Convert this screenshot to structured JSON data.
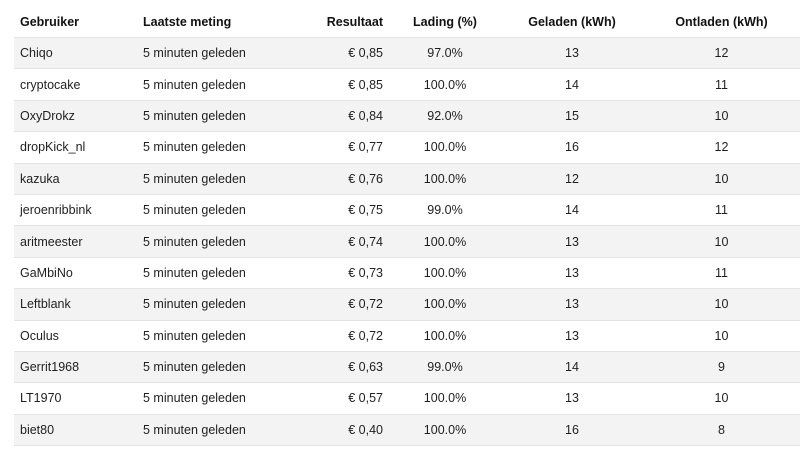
{
  "table": {
    "headers": {
      "user": "Gebruiker",
      "last_measurement": "Laatste meting",
      "result": "Resultaat",
      "charge": "Lading (%)",
      "charged": "Geladen (kWh)",
      "discharged": "Ontladen (kWh)"
    },
    "rows": [
      {
        "user": "Chiqo",
        "last_measurement": "5 minuten geleden",
        "result": "€ 0,85",
        "charge": "97.0%",
        "charged": "13",
        "discharged": "12"
      },
      {
        "user": "cryptocake",
        "last_measurement": "5 minuten geleden",
        "result": "€ 0,85",
        "charge": "100.0%",
        "charged": "14",
        "discharged": "11"
      },
      {
        "user": "OxyDrokz",
        "last_measurement": "5 minuten geleden",
        "result": "€ 0,84",
        "charge": "92.0%",
        "charged": "15",
        "discharged": "10"
      },
      {
        "user": "dropKick_nl",
        "last_measurement": "5 minuten geleden",
        "result": "€ 0,77",
        "charge": "100.0%",
        "charged": "16",
        "discharged": "12"
      },
      {
        "user": "kazuka",
        "last_measurement": "5 minuten geleden",
        "result": "€ 0,76",
        "charge": "100.0%",
        "charged": "12",
        "discharged": "10"
      },
      {
        "user": "jeroenribbink",
        "last_measurement": "5 minuten geleden",
        "result": "€ 0,75",
        "charge": "99.0%",
        "charged": "14",
        "discharged": "11"
      },
      {
        "user": "aritmeester",
        "last_measurement": "5 minuten geleden",
        "result": "€ 0,74",
        "charge": "100.0%",
        "charged": "13",
        "discharged": "10"
      },
      {
        "user": "GaMbiNo",
        "last_measurement": "5 minuten geleden",
        "result": "€ 0,73",
        "charge": "100.0%",
        "charged": "13",
        "discharged": "11"
      },
      {
        "user": "Leftblank",
        "last_measurement": "5 minuten geleden",
        "result": "€ 0,72",
        "charge": "100.0%",
        "charged": "13",
        "discharged": "10"
      },
      {
        "user": "Oculus",
        "last_measurement": "5 minuten geleden",
        "result": "€ 0,72",
        "charge": "100.0%",
        "charged": "13",
        "discharged": "10"
      },
      {
        "user": "Gerrit1968",
        "last_measurement": "5 minuten geleden",
        "result": "€ 0,63",
        "charge": "99.0%",
        "charged": "14",
        "discharged": "9"
      },
      {
        "user": "LT1970",
        "last_measurement": "5 minuten geleden",
        "result": "€ 0,57",
        "charge": "100.0%",
        "charged": "13",
        "discharged": "10"
      },
      {
        "user": "biet80",
        "last_measurement": "5 minuten geleden",
        "result": "€ 0,40",
        "charge": "100.0%",
        "charged": "16",
        "discharged": "8"
      }
    ]
  }
}
